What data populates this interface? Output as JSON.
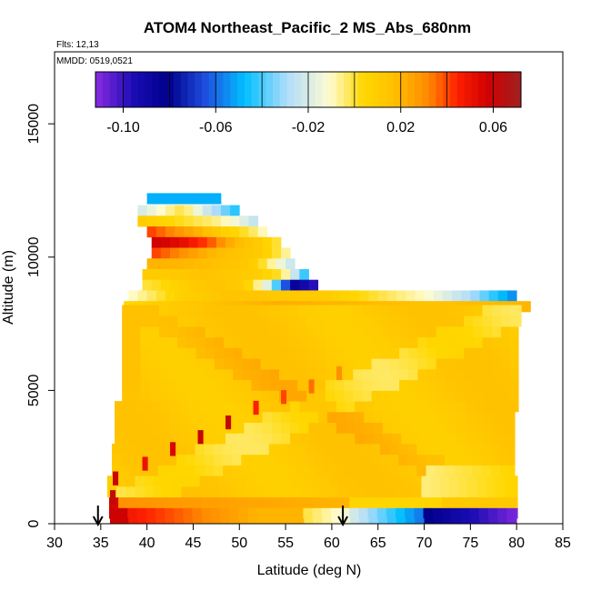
{
  "chart_data": {
    "type": "heatmap",
    "title": "ATOM4 Northeast_Pacific_2 MS_Abs_680nm",
    "subtitle_flights": "Flts: 12,13",
    "subtitle_dates": "MMDD: 0519,0521",
    "xlabel": "Latitude (deg N)",
    "ylabel": "Altitude (m)",
    "xlim": [
      30,
      85
    ],
    "ylim": [
      0,
      17700
    ],
    "x_ticks": [
      30,
      35,
      40,
      45,
      50,
      55,
      60,
      65,
      70,
      75,
      80,
      85
    ],
    "y_ticks": [
      0,
      5000,
      10000,
      15000
    ],
    "colorbar": {
      "range": [
        -0.112,
        0.072
      ],
      "ticks": [
        -0.1,
        -0.06,
        -0.02,
        0.02,
        0.06
      ],
      "tick_labels": [
        "-0.10",
        "-0.06",
        "-0.02",
        "0.02",
        "0.06"
      ],
      "stops": [
        [
          0.0,
          "#8a2be2"
        ],
        [
          0.09,
          "#1a0cb4"
        ],
        [
          0.17,
          "#00008b"
        ],
        [
          0.26,
          "#1f4fe0"
        ],
        [
          0.35,
          "#00bfff"
        ],
        [
          0.45,
          "#b0dcfa"
        ],
        [
          0.55,
          "#fffcd0"
        ],
        [
          0.63,
          "#ffd700"
        ],
        [
          0.7,
          "#ffc000"
        ],
        [
          0.78,
          "#ff8c00"
        ],
        [
          0.85,
          "#ff2000"
        ],
        [
          0.92,
          "#d00000"
        ],
        [
          1.0,
          "#a02020"
        ]
      ]
    },
    "arrows_latitude": [
      34.7,
      61.2
    ],
    "rows": [
      {
        "alt": 12200,
        "lat": [
          40.0,
          48.0
        ],
        "values": [
          -0.05,
          -0.05,
          -0.05,
          -0.05,
          -0.05
        ]
      },
      {
        "alt": 11750,
        "lat": [
          39.0,
          50.0
        ],
        "values": [
          -0.02,
          -0.01,
          0.0,
          -0.02,
          -0.035,
          -0.05
        ]
      },
      {
        "alt": 11350,
        "lat": [
          39.0,
          52.0
        ],
        "values": [
          0.01,
          0.005,
          0.0,
          -0.005,
          -0.015,
          -0.03
        ]
      },
      {
        "alt": 10950,
        "lat": [
          40.0,
          53.0
        ],
        "values": [
          0.04,
          0.03,
          0.02,
          0.008,
          0.0,
          -0.015
        ]
      },
      {
        "alt": 10550,
        "lat": [
          40.5,
          54.5
        ],
        "values": [
          0.058,
          0.052,
          0.04,
          0.02,
          0.01,
          -0.005
        ]
      },
      {
        "alt": 10150,
        "lat": [
          40.5,
          55.0
        ],
        "values": [
          0.04,
          0.03,
          0.02,
          0.015,
          0.01,
          -0.01
        ]
      },
      {
        "alt": 9750,
        "lat": [
          40.0,
          56.0
        ],
        "values": [
          0.02,
          0.02,
          0.018,
          0.015,
          0.012,
          -0.01,
          -0.03
        ]
      },
      {
        "alt": 9350,
        "lat": [
          39.5,
          57.0
        ],
        "values": [
          0.01,
          0.012,
          0.015,
          0.012,
          0.01,
          0.0,
          -0.05
        ]
      },
      {
        "alt": 8950,
        "lat": [
          39.5,
          58.0
        ],
        "values": [
          0.0,
          0.005,
          0.012,
          0.014,
          0.01,
          -0.02,
          -0.085,
          -0.1
        ]
      },
      {
        "alt": 8550,
        "lat": [
          38.0,
          80.0
        ],
        "values": [
          -0.01,
          0.008,
          0.015,
          0.012,
          0.01,
          0.0,
          -0.01,
          -0.03,
          -0.06
        ]
      },
      {
        "alt": 8150,
        "lat": [
          37.5,
          81.0
        ],
        "values": [
          0.005,
          0.012,
          0.018,
          0.022,
          0.02,
          0.018,
          0.016,
          0.018,
          0.02
        ]
      }
    ]
  }
}
